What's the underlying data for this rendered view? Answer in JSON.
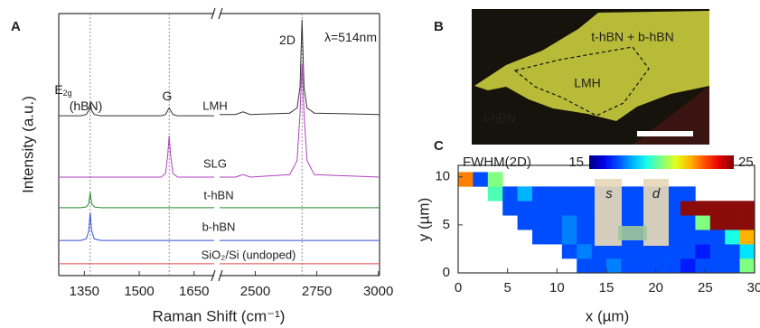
{
  "panel_labels": [
    "A",
    "B",
    "C"
  ],
  "image": {
    "labels": [
      "t-hBN + b-hBN",
      "LMH",
      "t-hBN"
    ]
  },
  "chart_data": [
    {
      "type": "line",
      "xlabel": "Raman Shift (cm⁻¹)",
      "ylabel": "Intensity (a.u.)",
      "xlim": [
        1280,
        3005
      ],
      "xbreak": [
        1705,
        2355
      ],
      "ylim": [
        0,
        100
      ],
      "xticks": [
        1350,
        1500,
        1650,
        2500,
        2750,
        3000
      ],
      "reference_x": [
        1366,
        1582,
        2690
      ],
      "annotations": [
        {
          "text": "E",
          "sub": "2g"
        },
        {
          "text": "(hBN)"
        },
        {
          "text": "G"
        },
        {
          "text": "2D"
        },
        {
          "text": "λ=514nm"
        }
      ],
      "x": [
        1280,
        1340,
        1355,
        1362,
        1366,
        1370,
        1377,
        1395,
        1560,
        1572,
        1578,
        1582,
        1586,
        1592,
        1605,
        1705,
        2355,
        2420,
        2450,
        2480,
        2640,
        2670,
        2682,
        2690,
        2698,
        2710,
        2740,
        3005
      ],
      "series": [
        {
          "name": "LMH",
          "color": "#333333",
          "values": [
            61,
            61,
            61.5,
            63,
            66,
            63,
            61.5,
            61,
            61,
            61.5,
            63,
            64,
            63,
            61.5,
            61,
            61,
            61.5,
            61.5,
            62.5,
            61.5,
            62,
            64,
            72,
            97.6,
            72,
            64,
            62,
            61.5
          ]
        },
        {
          "name": "SLG",
          "color": "#b040c0",
          "values": [
            37.6,
            37.6,
            37.6,
            37.6,
            37.6,
            37.6,
            37.6,
            37.6,
            37.6,
            39,
            46,
            53.4,
            46,
            39,
            37.6,
            37.6,
            37.6,
            37.6,
            38.6,
            37.6,
            38.5,
            44,
            62,
            81,
            62,
            44,
            38.5,
            37.6
          ]
        },
        {
          "name": "t-hBN",
          "color": "#2a8a2a",
          "values": [
            25.9,
            25.9,
            26.2,
            27.5,
            31.7,
            27.5,
            26.2,
            25.9,
            25.9,
            25.9,
            25.9,
            25.9,
            25.9,
            25.9,
            25.9,
            25.9,
            25.9,
            25.9,
            25.9,
            25.9,
            25.9,
            25.9,
            25.9,
            25.9,
            25.9,
            25.9,
            25.9,
            25.9
          ]
        },
        {
          "name": "b-hBN",
          "color": "#3050d0",
          "values": [
            13.4,
            13.4,
            14,
            17,
            24,
            17,
            14,
            13.4,
            13.4,
            13.4,
            13.4,
            13.4,
            13.4,
            13.4,
            13.4,
            13.4,
            13.4,
            13.4,
            13.4,
            13.4,
            13.4,
            13.4,
            13.4,
            13.4,
            13.4,
            13.4,
            13.4,
            13.4
          ]
        },
        {
          "name": "SiO₂/Si (undoped)",
          "color": "#e04848",
          "values": [
            4.5,
            4.5,
            4.5,
            4.5,
            4.5,
            4.5,
            4.5,
            4.5,
            4.5,
            4.5,
            4.5,
            4.5,
            4.5,
            4.5,
            4.5,
            4.5,
            4.5,
            4.5,
            4.5,
            4.5,
            4.5,
            4.5,
            4.5,
            4.5,
            4.5,
            4.5,
            4.5,
            4.5
          ]
        }
      ]
    },
    {
      "type": "heatmap",
      "xlabel": "x (µm)",
      "ylabel": "y (µm)",
      "xlim": [
        0,
        30
      ],
      "ylim": [
        0,
        11.2
      ],
      "xticks": [
        0,
        5,
        10,
        15,
        20,
        25,
        30
      ],
      "yticks": [
        0,
        5,
        10
      ],
      "colorbar": {
        "label": "FWHM(2D)",
        "lim": [
          15,
          25
        ],
        "ticks": [
          15,
          25
        ]
      },
      "device_labels": [
        "s",
        "d"
      ],
      "x": [
        0,
        1.5,
        3,
        4.5,
        6,
        7.5,
        9,
        10.5,
        12,
        13.5,
        15,
        16.5,
        18,
        19.5,
        21,
        22.5,
        24,
        25.5,
        27,
        28.5,
        30
      ],
      "y": [
        0,
        1.5,
        3,
        4.5,
        6,
        7.5,
        9,
        10.5
      ],
      "z": [
        [
          null,
          null,
          null,
          null,
          null,
          null,
          null,
          null,
          17,
          17,
          17.5,
          17,
          17,
          17,
          17,
          16.5,
          17,
          17,
          17,
          20
        ],
        [
          null,
          null,
          null,
          null,
          null,
          null,
          null,
          17,
          17.5,
          17,
          17,
          17,
          17,
          17,
          17,
          17,
          16.5,
          17,
          17,
          18.5
        ],
        [
          null,
          null,
          null,
          null,
          null,
          17,
          17,
          17.5,
          17,
          17,
          17,
          17,
          17,
          17,
          17,
          17,
          17,
          17,
          19,
          22
        ],
        [
          null,
          null,
          null,
          null,
          17,
          17,
          17,
          17.5,
          17,
          17,
          17,
          17,
          17,
          17,
          17,
          17,
          20,
          27,
          27,
          27
        ],
        [
          null,
          null,
          null,
          17,
          17,
          17,
          17,
          17,
          17,
          17,
          17,
          17,
          17,
          17,
          17,
          27,
          27,
          27,
          27,
          27
        ],
        [
          null,
          null,
          19.5,
          17,
          18,
          17,
          17,
          17,
          17,
          17,
          17,
          17,
          17,
          17,
          17,
          17,
          null,
          null,
          null,
          null
        ],
        [
          22.5,
          17,
          20,
          null,
          null,
          null,
          null,
          null,
          null,
          null,
          null,
          null,
          null,
          null,
          null,
          null,
          null,
          null,
          null,
          null
        ]
      ]
    }
  ]
}
